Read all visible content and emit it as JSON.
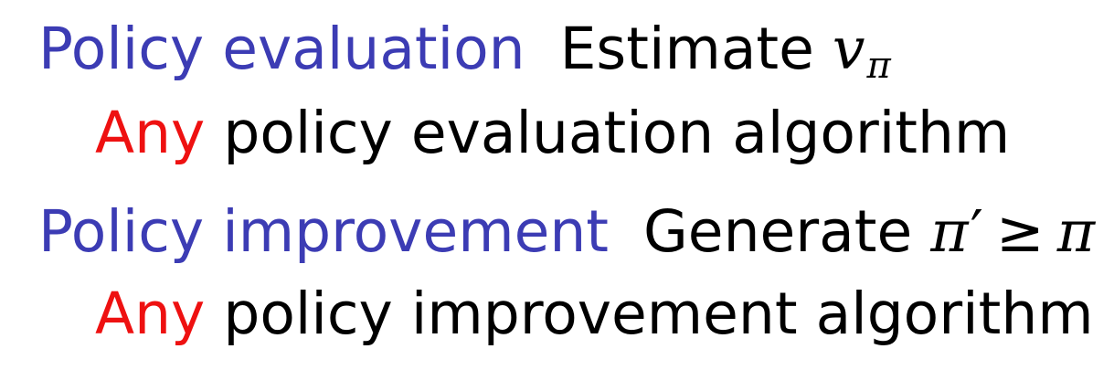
{
  "rows": [
    {
      "term": "Policy evaluation",
      "description": "Estimate",
      "math_var": "v",
      "math_sub": "π",
      "detail_highlight": "Any",
      "detail_text": "policy evaluation algorithm"
    },
    {
      "term": "Policy improvement",
      "description": "Generate",
      "math_lhs": "π",
      "math_prime": "′",
      "math_op": "≥",
      "math_rhs": "π",
      "detail_highlight": "Any",
      "detail_text": "policy improvement algorithm"
    }
  ],
  "colors": {
    "term": "#3c3cb4",
    "highlight": "#ee1111",
    "text": "#000000"
  }
}
